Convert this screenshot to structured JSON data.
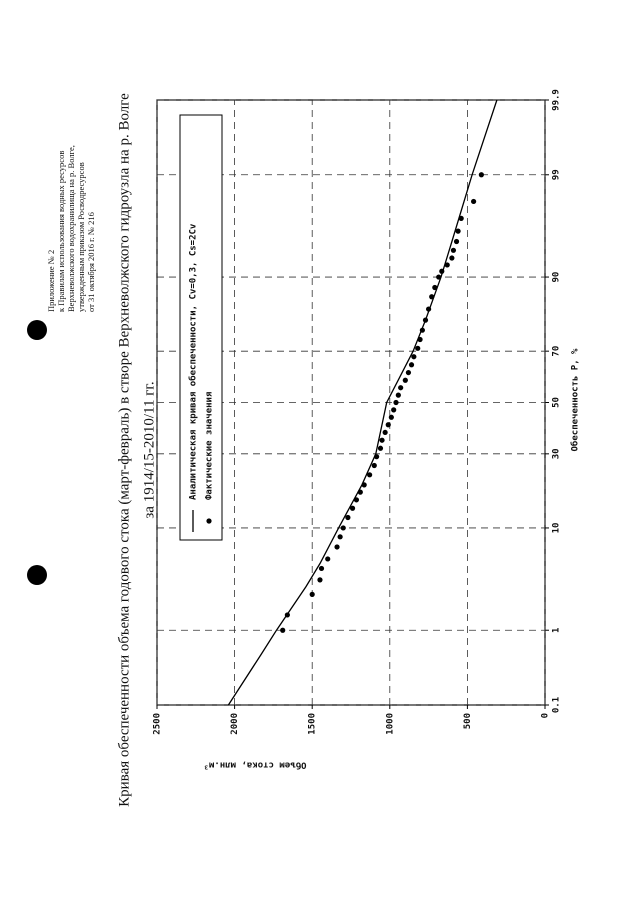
{
  "header": [
    "Приложение № 2",
    "к Правилам использования водных ресурсов",
    "Верхневолжского водохранилища на р. Волге,",
    "утвержденным приказом Росводресурсов",
    "от 31 октября 2016 г. № 216"
  ],
  "chart_data": {
    "type": "line",
    "title": "Кривая обеспеченности объема годового стока (март-февраль) в створе Верхневолжского гидроузла на р. Волге",
    "subtitle": "за 1914/15-2010/11 гг.",
    "x_label": "Обеспеченность P, %",
    "y_label": "Объем стока, млн.м³",
    "xscale": "probability",
    "xlim": [
      0.1,
      99.9
    ],
    "xticks": [
      0.1,
      1,
      10,
      30,
      50,
      70,
      90,
      99,
      99.9
    ],
    "ylim": [
      0,
      2500
    ],
    "yticks": [
      0,
      500,
      1000,
      1500,
      2000,
      2500
    ],
    "grid": true,
    "legend": "upper right",
    "series": [
      {
        "name": "Аналитическая кривая обеспеченности, Cv=0,3, Cs=2Cv",
        "style": "line",
        "color": "#000000",
        "x": [
          0.1,
          0.5,
          1,
          3,
          5,
          10,
          20,
          30,
          50,
          70,
          80,
          90,
          95,
          99,
          99.9
        ],
        "values": [
          2040,
          1830,
          1730,
          1540,
          1450,
          1330,
          1180,
          1090,
          1020,
          850,
          770,
          670,
          600,
          470,
          310
        ]
      },
      {
        "name": "Фактические значения",
        "style": "points",
        "color": "#000000",
        "x": [
          1.0,
          1.5,
          2.5,
          3.5,
          4.5,
          5.5,
          7,
          8.5,
          10,
          12,
          14,
          16,
          18,
          20,
          23,
          26,
          29,
          32,
          35,
          38,
          41,
          44,
          47,
          50,
          53,
          56,
          59,
          62,
          65,
          68,
          71,
          74,
          77,
          80,
          83,
          86,
          88,
          90,
          91,
          92,
          93,
          94,
          95,
          96,
          97,
          98,
          99
        ],
        "values": [
          1690,
          1660,
          1500,
          1450,
          1440,
          1400,
          1340,
          1320,
          1300,
          1270,
          1240,
          1215,
          1190,
          1165,
          1130,
          1100,
          1085,
          1060,
          1050,
          1030,
          1010,
          990,
          975,
          960,
          945,
          930,
          900,
          880,
          860,
          845,
          820,
          805,
          790,
          770,
          750,
          730,
          710,
          685,
          665,
          630,
          600,
          590,
          570,
          560,
          540,
          460,
          410
        ]
      }
    ]
  }
}
